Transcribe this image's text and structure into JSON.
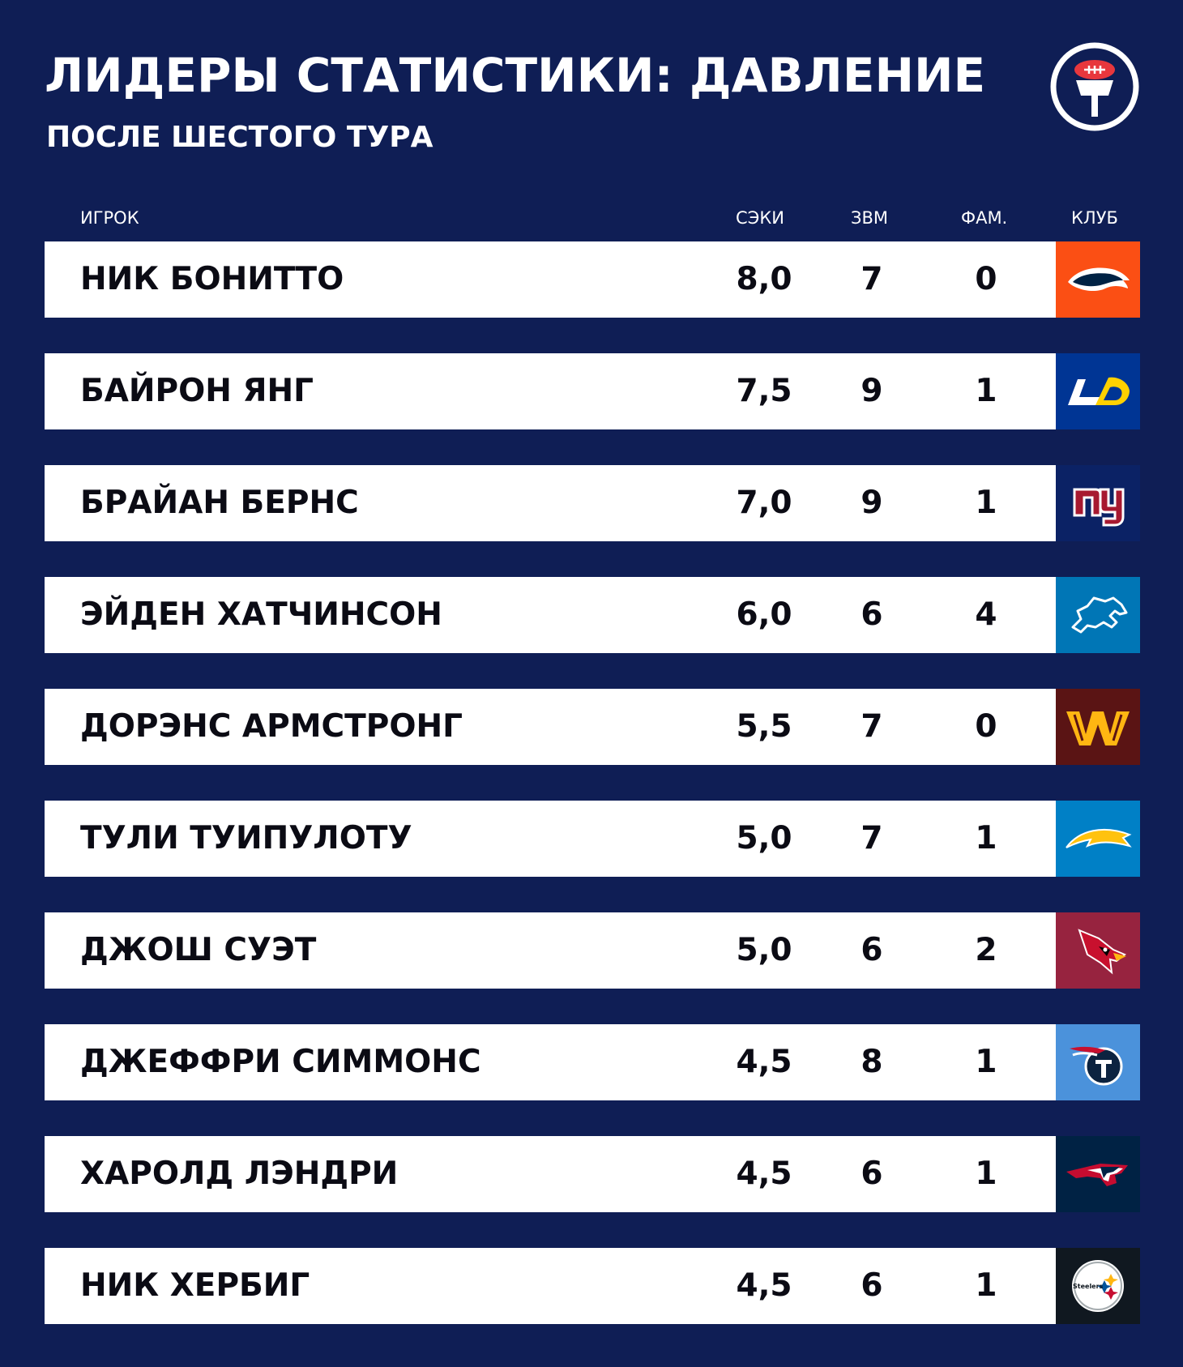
{
  "header": {
    "title": "ЛИДЕРЫ СТАТИСТИКИ: ДАВЛЕНИЕ",
    "subtitle": "ПОСЛЕ ШЕСТОГО ТУРА",
    "logo_icon": "football-microphone-logo-icon"
  },
  "columns": {
    "player": "ИГРОК",
    "sacks": "СЭКИ",
    "qb_hits": "ЗВМ",
    "fumbles": "ФАМ.",
    "club": "КЛУБ"
  },
  "rows": [
    {
      "name": "НИК БОНИТТО",
      "sacks": "8,0",
      "qb_hits": "7",
      "fumbles": "0",
      "club_color": "#fb4f14",
      "club_icon": "broncos-horse-icon"
    },
    {
      "name": "БАЙРОН ЯНГ",
      "sacks": "7,5",
      "qb_hits": "9",
      "fumbles": "1",
      "club_color": "#003594",
      "club_icon": "rams-la-icon"
    },
    {
      "name": "БРАЙАН БЕРНС",
      "sacks": "7,0",
      "qb_hits": "9",
      "fumbles": "1",
      "club_color": "#0b2265",
      "club_icon": "giants-ny-icon"
    },
    {
      "name": "ЭЙДЕН ХАТЧИНСОН",
      "sacks": "6,0",
      "qb_hits": "6",
      "fumbles": "4",
      "club_color": "#0076b6",
      "club_icon": "lions-lion-icon"
    },
    {
      "name": "ДОРЭНС АРМСТРОНГ",
      "sacks": "5,5",
      "qb_hits": "7",
      "fumbles": "0",
      "club_color": "#5a1414",
      "club_icon": "commanders-w-icon"
    },
    {
      "name": "ТУЛИ ТУИПУЛОТУ",
      "sacks": "5,0",
      "qb_hits": "7",
      "fumbles": "1",
      "club_color": "#0080c6",
      "club_icon": "chargers-bolt-icon"
    },
    {
      "name": "ДЖОШ СУЭТ",
      "sacks": "5,0",
      "qb_hits": "6",
      "fumbles": "2",
      "club_color": "#97233f",
      "club_icon": "cardinals-bird-icon"
    },
    {
      "name": "ДЖЕФФРИ СИММОНС",
      "sacks": "4,5",
      "qb_hits": "8",
      "fumbles": "1",
      "club_color": "#4b92db",
      "club_icon": "titans-t-icon"
    },
    {
      "name": "ХАРОЛД ЛЭНДРИ",
      "sacks": "4,5",
      "qb_hits": "6",
      "fumbles": "1",
      "club_color": "#002244",
      "club_icon": "patriots-flying-elvis-icon"
    },
    {
      "name": "НИК ХЕРБИГ",
      "sacks": "4,5",
      "qb_hits": "6",
      "fumbles": "1",
      "club_color": "#101820",
      "club_icon": "steelers-logo-icon"
    }
  ],
  "logo_text": {
    "steelers": "Steelers"
  }
}
